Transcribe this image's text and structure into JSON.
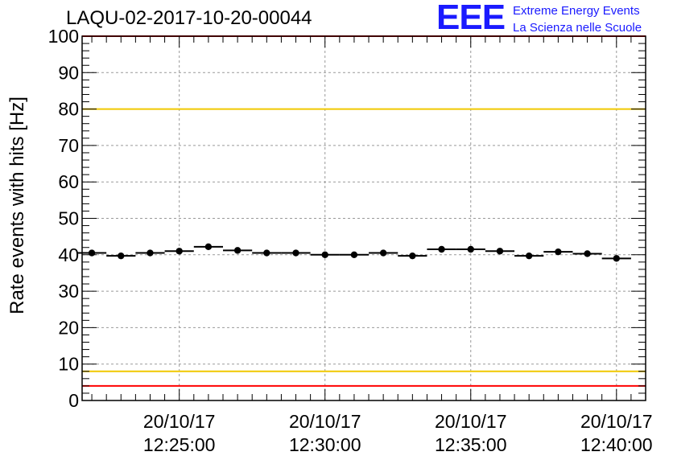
{
  "header": {
    "title": "LAQU-02-2017-10-20-00044",
    "logo_mark": "EEE",
    "logo_line1": "Extreme Energy Events",
    "logo_line2": "La Scienza nelle Scuole"
  },
  "chart_data": {
    "type": "scatter",
    "title": "LAQU-02-2017-10-20-00044",
    "xlabel": "",
    "ylabel": "Rate events with hits [Hz]",
    "ylim": [
      0,
      100
    ],
    "yticks": [
      0,
      10,
      20,
      30,
      40,
      50,
      60,
      70,
      80,
      90,
      100
    ],
    "xlim": [
      "2017-10-20 12:21:40",
      "2017-10-20 12:41:00"
    ],
    "xticks": [
      {
        "date": "20/10/17",
        "time": "12:25:00"
      },
      {
        "date": "20/10/17",
        "time": "12:30:00"
      },
      {
        "date": "20/10/17",
        "time": "12:35:00"
      },
      {
        "date": "20/10/17",
        "time": "12:40:00"
      }
    ],
    "grid": true,
    "colors": {
      "points": "#000000",
      "limit_inner": "#f0c800",
      "limit_outer": "#ff0000",
      "grid": "#999999"
    },
    "reference_lines": [
      {
        "y": 100,
        "color": "#ff0000"
      },
      {
        "y": 80,
        "color": "#f0c800"
      },
      {
        "y": 8,
        "color": "#f0c800"
      },
      {
        "y": 4,
        "color": "#ff0000"
      }
    ],
    "bin_width_s": 60,
    "series": [
      {
        "name": "",
        "x": [
          "12:22:00",
          "12:23:00",
          "12:24:00",
          "12:25:00",
          "12:26:00",
          "12:27:00",
          "12:28:00",
          "12:29:00",
          "12:30:00",
          "12:31:00",
          "12:32:00",
          "12:33:00",
          "12:34:00",
          "12:35:00",
          "12:36:00",
          "12:37:00",
          "12:38:00",
          "12:39:00",
          "12:40:00"
        ],
        "values": [
          40.5,
          39.7,
          40.5,
          41.0,
          42.2,
          41.2,
          40.5,
          40.5,
          40.0,
          40.0,
          40.5,
          39.7,
          41.5,
          41.5,
          41.0,
          39.7,
          40.8,
          40.3,
          39.0
        ]
      }
    ]
  }
}
